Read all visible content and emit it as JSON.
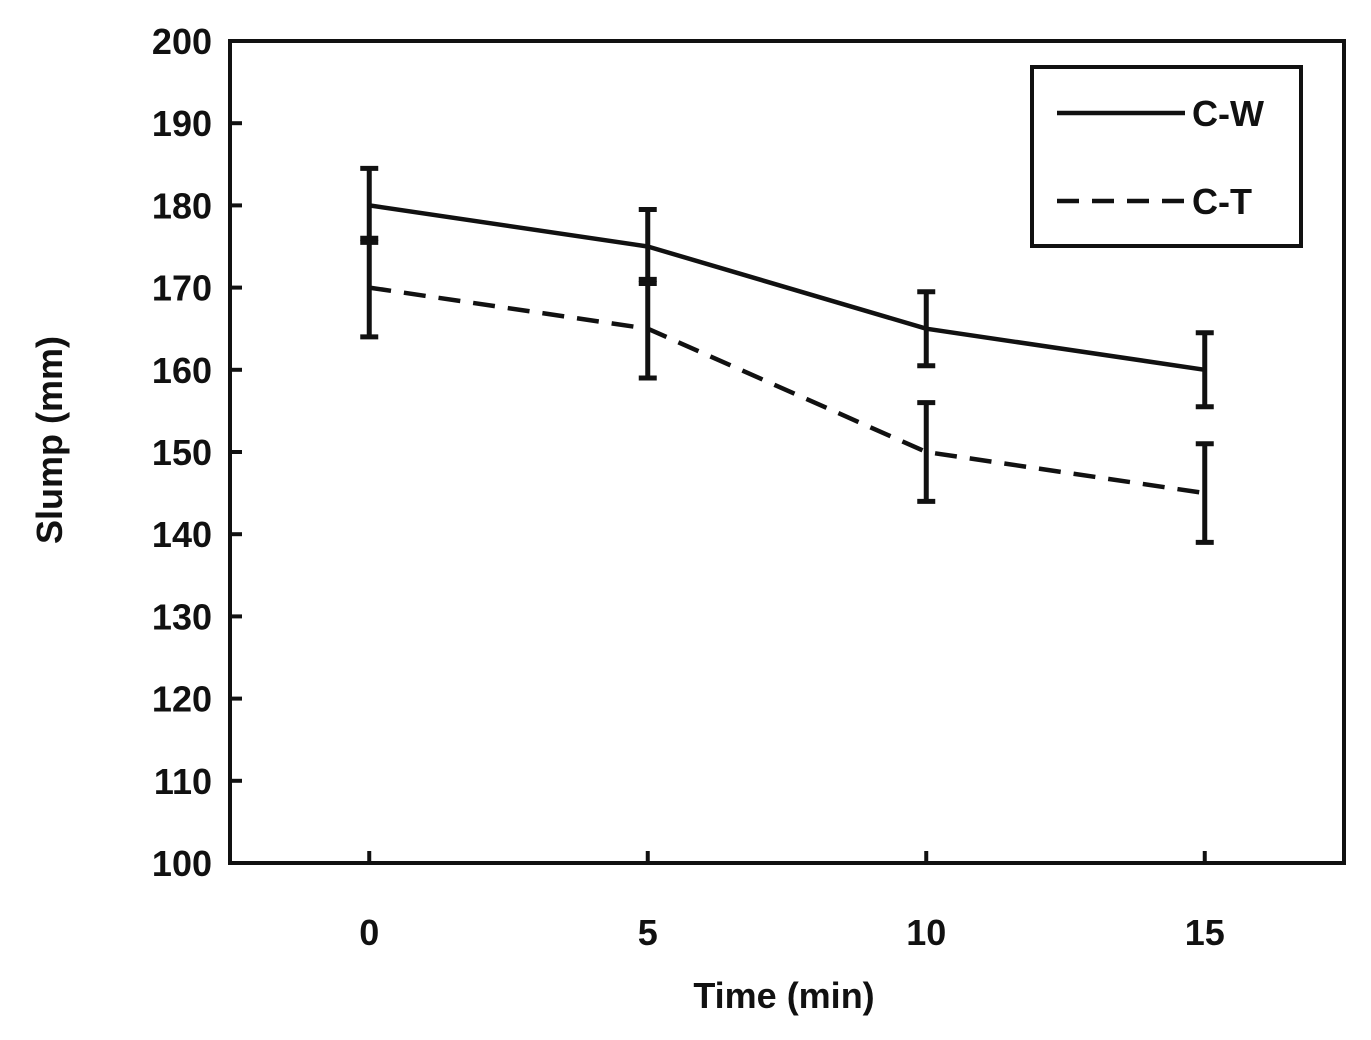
{
  "chart_data": {
    "type": "line",
    "title": "",
    "xlabel": "Time (min)",
    "ylabel": "Slump (mm)",
    "x": [
      0,
      5,
      10,
      15
    ],
    "x_ticks": [
      "0",
      "5",
      "10",
      "15"
    ],
    "xlim": [
      -2.5,
      17.5
    ],
    "ylim": [
      100,
      200
    ],
    "y_ticks": [
      "100",
      "110",
      "120",
      "130",
      "140",
      "150",
      "160",
      "170",
      "180",
      "190",
      "200"
    ],
    "y_tick_values": [
      100,
      110,
      120,
      130,
      140,
      150,
      160,
      170,
      180,
      190,
      200
    ],
    "grid": false,
    "legend_position": "top-right",
    "series": [
      {
        "name": "C-W",
        "style": "solid",
        "values": [
          180,
          175,
          165,
          160
        ],
        "error": [
          4.5,
          4.5,
          4.5,
          4.5
        ]
      },
      {
        "name": "C-T",
        "style": "dashed",
        "values": [
          170,
          165,
          150,
          145
        ],
        "error": [
          6,
          6,
          6,
          6
        ]
      }
    ],
    "color": "#111111"
  }
}
